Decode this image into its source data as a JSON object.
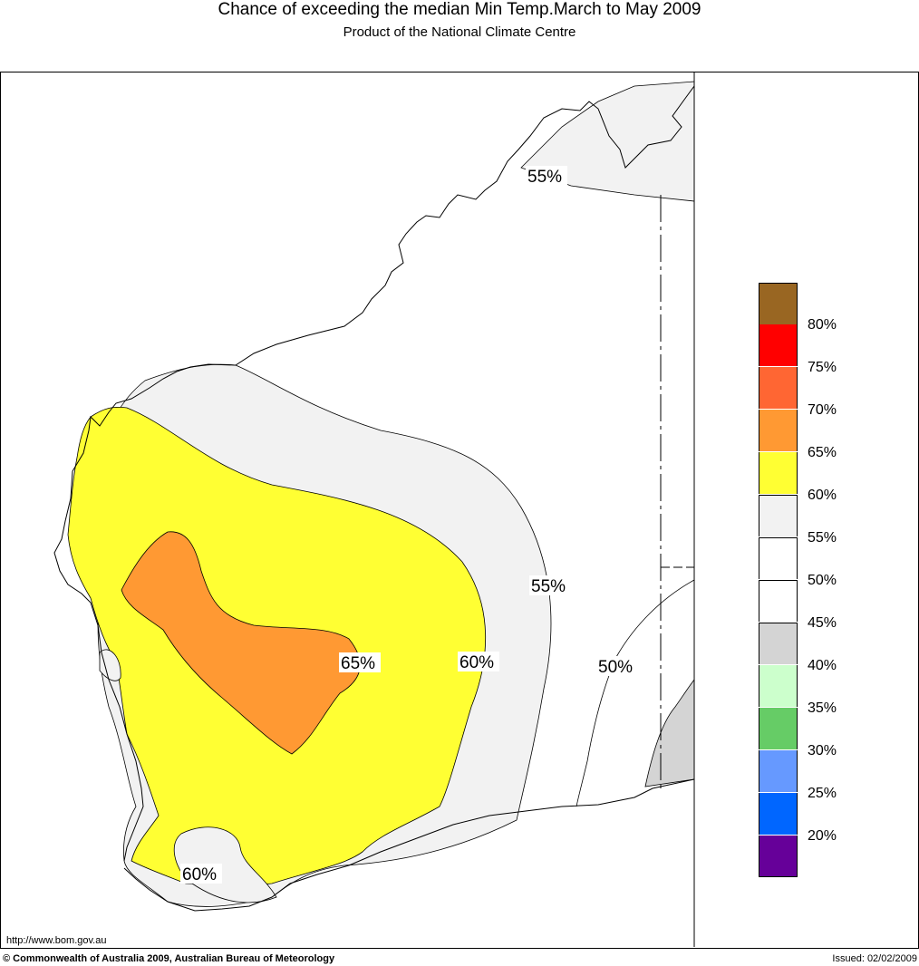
{
  "header": {
    "title": "Chance of exceeding the median Min Temp.March to May 2009",
    "subtitle": "Product of the National Climate Centre"
  },
  "map": {
    "contour_labels": [
      "55%",
      "55%",
      "50%",
      "60%",
      "65%",
      "60%"
    ],
    "fill_colors": {
      "p55_60": "#f2f2f2",
      "p60_65": "#ffff33",
      "p65_70": "#ff9933",
      "p40_45": "#d4d4d4"
    }
  },
  "legend": {
    "labels": [
      "80%",
      "75%",
      "70%",
      "65%",
      "60%",
      "55%",
      "50%",
      "45%",
      "40%",
      "35%",
      "30%",
      "25%",
      "20%"
    ],
    "colors": [
      "#996622",
      "#ff0000",
      "#ff6633",
      "#ff9933",
      "#ffff33",
      "#f2f2f2",
      "#ffffff",
      "#ffffff",
      "#d4d4d4",
      "#ccffcc",
      "#66cc66",
      "#6699ff",
      "#0066ff",
      "#660099"
    ]
  },
  "footer": {
    "url": "http://www.bom.gov.au",
    "copyright": "© Commonwealth of Australia 2009, Australian Bureau of Meteorology",
    "issued": "Issued: 02/02/2009"
  }
}
